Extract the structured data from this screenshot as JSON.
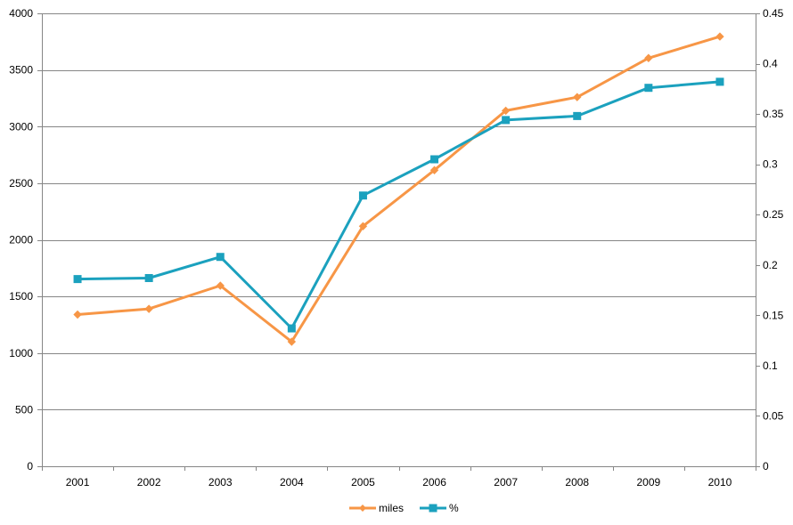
{
  "chart_data": {
    "type": "line",
    "title": "",
    "xlabel": "",
    "ylabel": "",
    "ylabel_right": "",
    "categories": [
      "2001",
      "2002",
      "2003",
      "2004",
      "2005",
      "2006",
      "2007",
      "2008",
      "2009",
      "2010"
    ],
    "y_left": {
      "min": 0,
      "max": 4000,
      "step": 500,
      "ticks": [
        "0",
        "500",
        "1000",
        "1500",
        "2000",
        "2500",
        "3000",
        "3500",
        "4000"
      ]
    },
    "y_right": {
      "min": 0,
      "max": 0.45,
      "step": 0.05,
      "ticks": [
        "0",
        "0.05",
        "0.1",
        "0.15",
        "0.2",
        "0.25",
        "0.3",
        "0.35",
        "0.4",
        "0.45"
      ]
    },
    "grid": true,
    "legend_position": "bottom",
    "series": [
      {
        "name": "miles",
        "axis": "left",
        "color": "#F79646",
        "marker": "diamond",
        "values": [
          1340,
          1390,
          1595,
          1100,
          2120,
          2615,
          3140,
          3260,
          3605,
          3795
        ]
      },
      {
        "name": "%",
        "axis": "right",
        "color": "#1BA1BE",
        "marker": "square",
        "values": [
          0.186,
          0.187,
          0.208,
          0.137,
          0.269,
          0.305,
          0.344,
          0.348,
          0.376,
          0.382
        ]
      }
    ]
  }
}
